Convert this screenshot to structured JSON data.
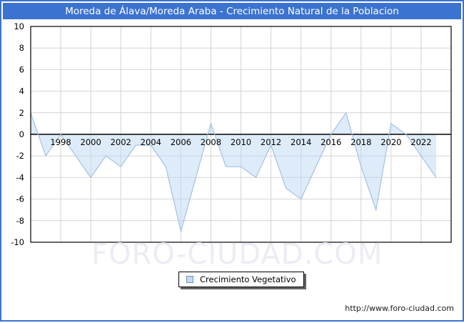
{
  "page": {
    "border_color": "#3b73d1",
    "background": "#ffffff"
  },
  "header": {
    "title": "Moreda de Álava/Moreda Araba - Crecimiento Natural de la Poblacion",
    "background": "#3b73d1",
    "text_color": "#ffffff"
  },
  "chart_data": {
    "type": "area",
    "title": "Moreda de Álava/Moreda Araba - Crecimiento Natural de la Poblacion",
    "x": [
      1996,
      1997,
      1998,
      1999,
      2000,
      2001,
      2002,
      2003,
      2004,
      2005,
      2006,
      2007,
      2008,
      2009,
      2010,
      2011,
      2012,
      2013,
      2014,
      2015,
      2016,
      2017,
      2018,
      2019,
      2020,
      2021,
      2022,
      2023
    ],
    "series": [
      {
        "name": "Crecimiento Vegetativo",
        "values": [
          2,
          -2,
          0,
          -2,
          -4,
          -2,
          -3,
          -1,
          -1,
          -3,
          -9,
          -4,
          1,
          -3,
          -3,
          -4,
          -1,
          -5,
          -6,
          -3,
          0,
          2,
          -3,
          -7,
          1,
          0,
          -2,
          -4
        ]
      }
    ],
    "xlabel": "",
    "ylabel": "",
    "ylim": [
      -10,
      10
    ],
    "ytick_step": 2,
    "xtick_years": [
      1998,
      2000,
      2002,
      2004,
      2006,
      2008,
      2010,
      2012,
      2014,
      2016,
      2018,
      2020,
      2022
    ],
    "x_domain": [
      1996,
      2024
    ],
    "grid": true,
    "legend_position": "bottom",
    "colors": {
      "line": "#a2c2e5",
      "fill": "#bed8f2",
      "fill_opacity": 0.5,
      "grid": "#d4d4d4",
      "zero_axis": "#000000",
      "plot_border": "#000000",
      "tick_text": "#000000"
    }
  },
  "legend": {
    "label": "Crecimiento Vegetativo",
    "swatch_fill": "#c5daf0",
    "swatch_border": "#6e93b8"
  },
  "watermark": {
    "text": "FORO-CIUDAD.COM",
    "color": "#ececf5"
  },
  "footer": {
    "url": "http://www.foro-ciudad.com"
  }
}
